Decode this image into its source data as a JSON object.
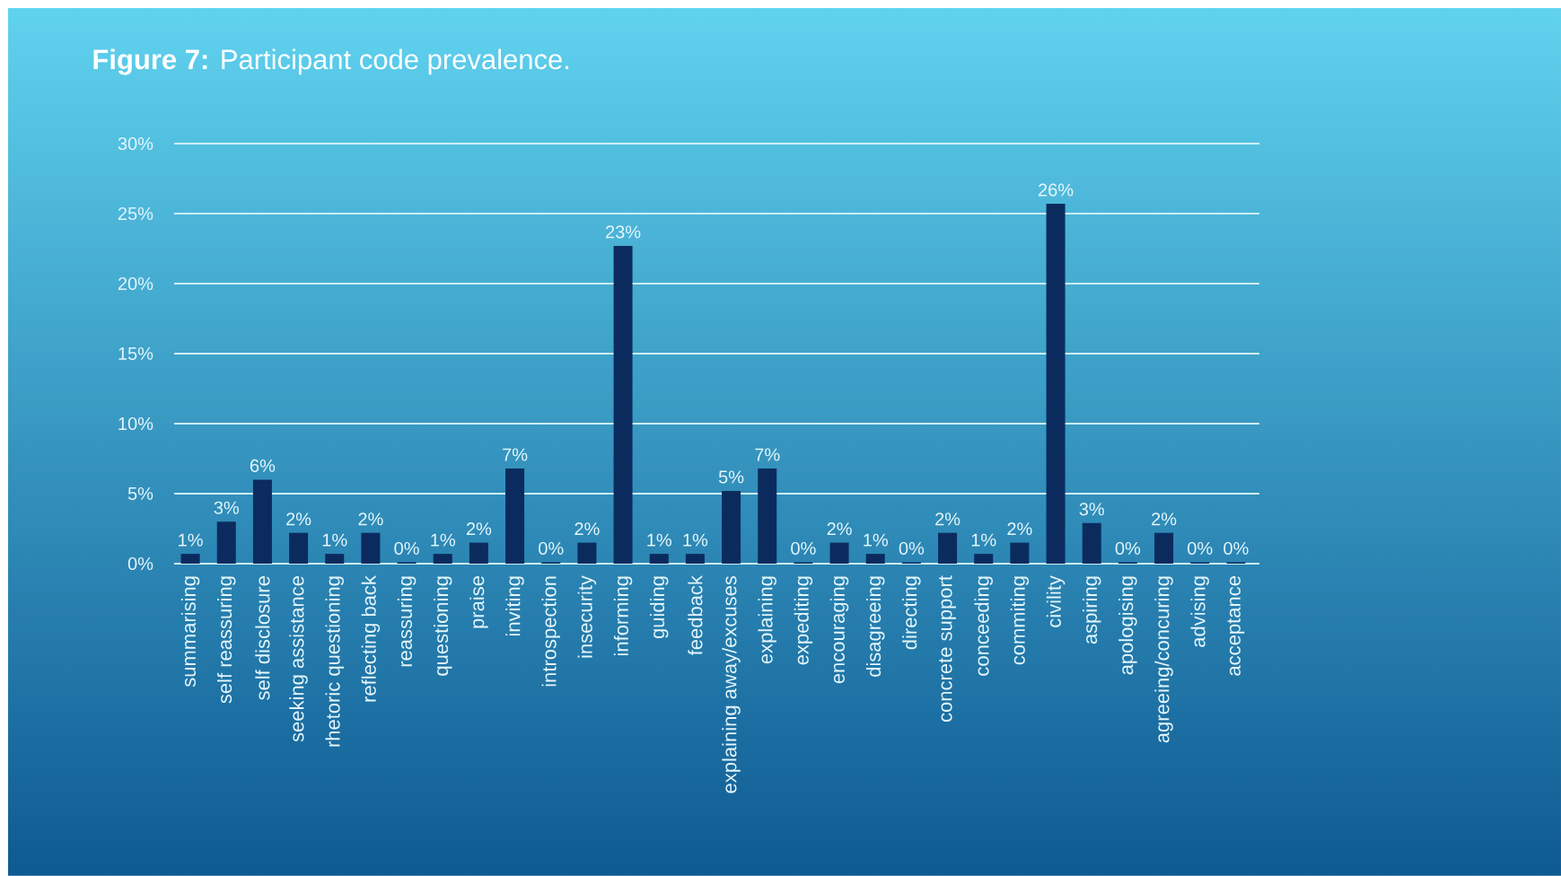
{
  "chart_data": {
    "type": "bar",
    "title": "**Figure 7:** Participant code prevalence.",
    "categories": [
      "summarising",
      "self reassuring",
      "self disclosure",
      "seeking assistance",
      "rhetoric questioning",
      "reflecting back",
      "reassuring",
      "questioning",
      "praise",
      "inviting",
      "introspection",
      "insecurity",
      "informing",
      "guiding",
      "feedback",
      "explaining away/excuses",
      "explaining",
      "expediting",
      "encouraging",
      "disagreeing",
      "directing",
      "concrete support",
      "conceeding",
      "commiting",
      "civility",
      "aspiring",
      "apologising",
      "agreeing/concuring",
      "advising",
      "acceptance"
    ],
    "values": [
      0.7,
      3.0,
      6.0,
      2.2,
      0.7,
      2.2,
      0.1,
      0.7,
      1.5,
      6.8,
      0.1,
      1.5,
      22.7,
      0.7,
      0.7,
      5.2,
      6.8,
      0.1,
      1.5,
      0.7,
      0.1,
      2.2,
      0.7,
      1.5,
      25.7,
      2.9,
      0.1,
      2.2,
      0.1,
      0.1
    ],
    "value_labels": [
      "1%",
      "3%",
      "6%",
      "2%",
      "1%",
      "2%",
      "0%",
      "1%",
      "2%",
      "7%",
      "0%",
      "2%",
      "23%",
      "1%",
      "1%",
      "5%",
      "7%",
      "0%",
      "2%",
      "1%",
      "0%",
      "2%",
      "1%",
      "2%",
      "26%",
      "3%",
      "0%",
      "2%",
      "0%",
      "0%"
    ],
    "color": "#0b2b5e",
    "ylim": [
      0,
      30
    ],
    "yticks": [
      {
        "value": 0,
        "label": "0%"
      },
      {
        "value": 5,
        "label": "5%"
      },
      {
        "value": 10,
        "label": "10%"
      },
      {
        "value": 15,
        "label": "15%"
      },
      {
        "value": 20,
        "label": "20%"
      },
      {
        "value": 25,
        "label": "25%"
      },
      {
        "value": 30,
        "label": "30%"
      }
    ],
    "grid": "y"
  }
}
